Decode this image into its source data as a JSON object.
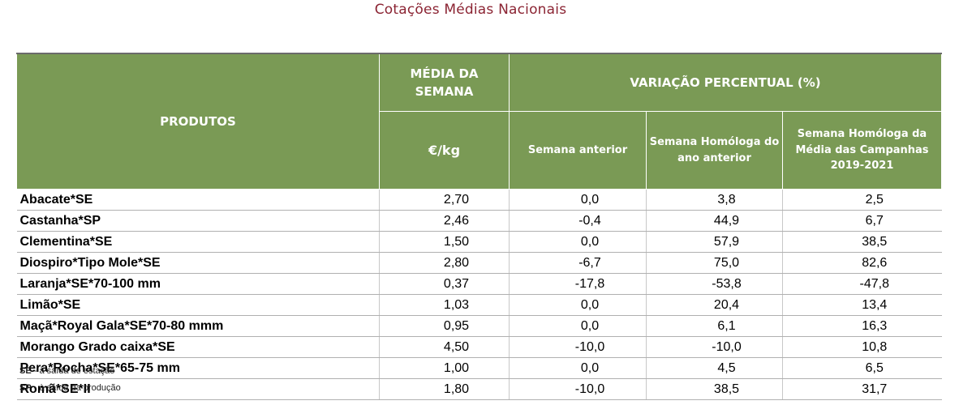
{
  "title": "Cotações Médias Nacionais",
  "header": {
    "products": "PRODUTOS",
    "media_semana": "MÉDIA DA SEMANA",
    "variacao": "VARIAÇÃO PERCENTUAL (%)",
    "unit": "€/kg",
    "semana_anterior": "Semana anterior",
    "semana_homologa": "Semana Homóloga do ano anterior",
    "semana_homologa_media": "Semana Homóloga da Média das Campanhas 2019-2021"
  },
  "rows": [
    {
      "product": "Abacate*SE",
      "media": "2,70",
      "anterior": "0,0",
      "homologa": "3,8",
      "campanhas": "2,5"
    },
    {
      "product": "Castanha*SP",
      "media": "2,46",
      "anterior": "-0,4",
      "homologa": "44,9",
      "campanhas": "6,7"
    },
    {
      "product": "Clementina*SE",
      "media": "1,50",
      "anterior": "0,0",
      "homologa": "57,9",
      "campanhas": "38,5"
    },
    {
      "product": "Diospiro*Tipo Mole*SE",
      "media": "2,80",
      "anterior": "-6,7",
      "homologa": "75,0",
      "campanhas": "82,6"
    },
    {
      "product": "Laranja*SE*70-100 mm",
      "media": "0,37",
      "anterior": "-17,8",
      "homologa": "-53,8",
      "campanhas": "-47,8"
    },
    {
      "product": "Limão*SE",
      "media": "1,03",
      "anterior": "0,0",
      "homologa": "20,4",
      "campanhas": "13,4"
    },
    {
      "product": "Maçã*Royal Gala*SE*70-80 mmm",
      "media": "0,95",
      "anterior": "0,0",
      "homologa": "6,1",
      "campanhas": "16,3"
    },
    {
      "product": "Morango Grado caixa*SE",
      "media": "4,50",
      "anterior": "-10,0",
      "homologa": "-10,0",
      "campanhas": "10,8"
    },
    {
      "product": "Pera*Rocha*SE*65-75 mm",
      "media": "1,00",
      "anterior": "0,0",
      "homologa": "4,5",
      "campanhas": "6,5"
    },
    {
      "product": "Romã*SE*II",
      "media": "1,80",
      "anterior": "-10,0",
      "homologa": "38,5",
      "campanhas": "31,7"
    }
  ],
  "footnotes": [
    {
      "code": "SE",
      "text": " - à saída de estação"
    },
    {
      "code": "SP",
      "text": " - à saída da produção"
    }
  ],
  "colors": {
    "header_bg": "#7a9a55",
    "title": "#8b2433"
  }
}
